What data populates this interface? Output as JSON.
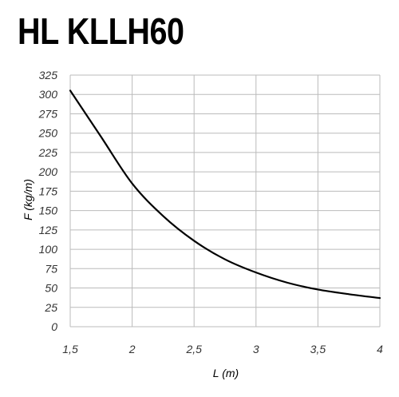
{
  "chart_data": {
    "type": "line",
    "title": "HL KLLH60",
    "xlabel": "L (m)",
    "ylabel": "F (kg/m)",
    "xlim": [
      1.5,
      4
    ],
    "ylim": [
      0,
      325
    ],
    "x_ticks": [
      1.5,
      2,
      2.5,
      3,
      3.5,
      4
    ],
    "x_tick_labels": [
      "1,5",
      "2",
      "2,5",
      "3",
      "3,5",
      "4"
    ],
    "y_ticks": [
      0,
      25,
      50,
      75,
      100,
      125,
      150,
      175,
      200,
      225,
      250,
      275,
      300,
      325
    ],
    "y_tick_labels": [
      "0",
      "25",
      "50",
      "75",
      "100",
      "125",
      "150",
      "175",
      "200",
      "225",
      "250",
      "275",
      "300",
      "325"
    ],
    "grid": true,
    "colors": {
      "line": "#000000",
      "grid": "#bbbbbb",
      "tick_text": "#333333"
    },
    "series": [
      {
        "x": [
          1.5,
          1.75,
          2,
          2.25,
          2.5,
          2.75,
          3,
          3.25,
          3.5,
          3.75,
          4
        ],
        "values": [
          305,
          245,
          185,
          143,
          111,
          87,
          70,
          57,
          48,
          42,
          37
        ]
      }
    ]
  }
}
